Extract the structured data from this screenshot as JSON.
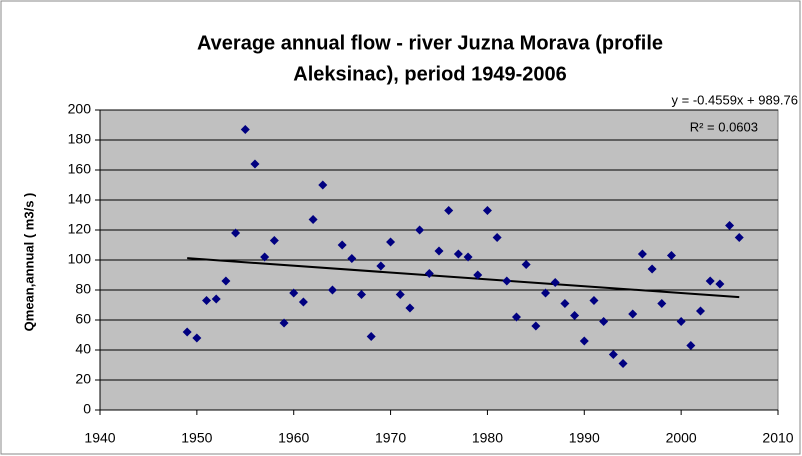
{
  "chart_data": {
    "type": "scatter",
    "title": [
      "Average annual flow - river Juzna Morava (profile",
      "Aleksinac), period 1949-2006"
    ],
    "y_label": "Qmean,annual ( m3/s )",
    "x": [
      1949,
      1950,
      1951,
      1952,
      1953,
      1954,
      1955,
      1956,
      1957,
      1958,
      1959,
      1960,
      1961,
      1962,
      1963,
      1964,
      1965,
      1966,
      1967,
      1968,
      1969,
      1970,
      1971,
      1972,
      1973,
      1974,
      1975,
      1976,
      1977,
      1978,
      1979,
      1980,
      1981,
      1982,
      1983,
      1984,
      1985,
      1986,
      1987,
      1988,
      1989,
      1990,
      1991,
      1992,
      1993,
      1994,
      1995,
      1996,
      1997,
      1998,
      1999,
      2000,
      2001,
      2002,
      2003,
      2004,
      2005,
      2006
    ],
    "values": [
      52,
      48,
      73,
      74,
      86,
      118,
      187,
      164,
      102,
      113,
      58,
      78,
      72,
      127,
      150,
      80,
      110,
      101,
      77,
      49,
      96,
      112,
      77,
      68,
      120,
      91,
      106,
      133,
      104,
      102,
      90,
      133,
      115,
      86,
      62,
      97,
      56,
      78,
      85,
      71,
      63,
      46,
      73,
      59,
      37,
      31,
      64,
      104,
      94,
      71,
      103,
      59,
      43,
      66,
      86,
      84,
      123,
      115
    ],
    "color": "#000080",
    "xlim": [
      1940,
      2010
    ],
    "xticks": [
      1940,
      1950,
      1960,
      1970,
      1980,
      1990,
      2000,
      2010
    ],
    "ylim": [
      0,
      200
    ],
    "yticks": [
      0,
      20,
      40,
      60,
      80,
      100,
      120,
      140,
      160,
      180,
      200
    ],
    "grid": true,
    "plot_color": "#c0c0c0",
    "trendline": {
      "label": "y = -0.4559x + 989.76",
      "slope": -0.4559,
      "intercept": 989.76,
      "r2_label": "R² = 0.0603",
      "color": "#000000"
    }
  }
}
